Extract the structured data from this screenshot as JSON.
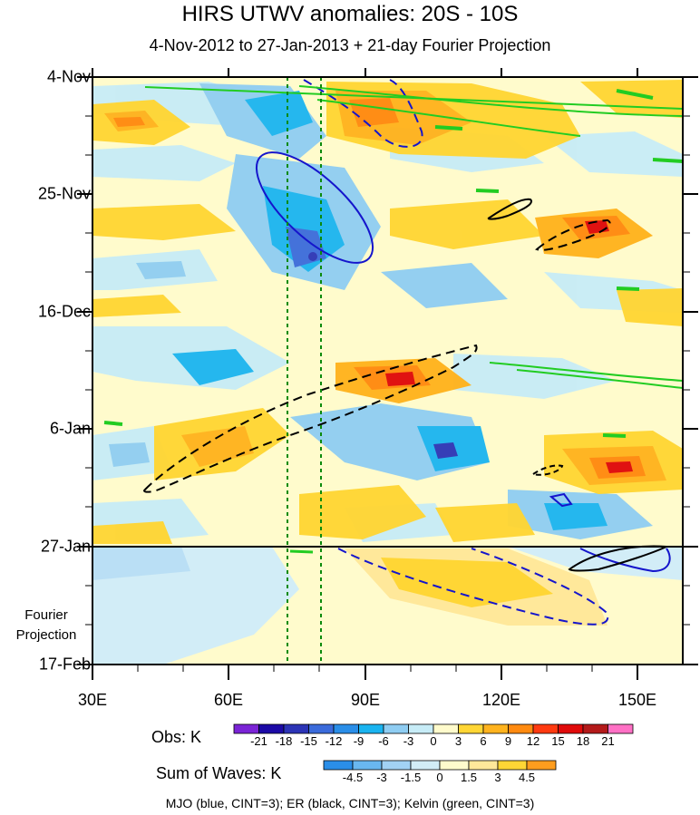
{
  "chart_data": {
    "type": "heatmap",
    "title": "HIRS UTWV anomalies: 20S - 10S",
    "subtitle": "4-Nov-2012 to 27-Jan-2013 + 21-day Fourier Projection",
    "x_axis": {
      "range": [
        30,
        160
      ],
      "ticks": [
        "30E",
        "60E",
        "90E",
        "120E",
        "150E"
      ],
      "tick_values": [
        30,
        60,
        90,
        120,
        150
      ]
    },
    "y_axis": {
      "ticks": [
        "4-Nov",
        "25-Nov",
        "16-Dec",
        "6-Jan",
        "27-Jan",
        "17-Feb"
      ],
      "direction": "time increases downward"
    },
    "projection_label": [
      "Fourier",
      "Projection"
    ],
    "reference_lines_x": [
      72.5,
      80
    ],
    "obs_colorbar": {
      "name": "Obs: K",
      "levels": [
        "-21",
        "-18",
        "-15",
        "-12",
        "-9",
        "-6",
        "-3",
        "0",
        "3",
        "6",
        "9",
        "12",
        "15",
        "18",
        "21"
      ],
      "colors": [
        "#7b24d6",
        "#1c0aa6",
        "#2c34b6",
        "#3b6bdb",
        "#2a8ee8",
        "#1ab4f0",
        "#8fcdf2",
        "#c7ecf7",
        "#fffbcc",
        "#ffd635",
        "#ffb31e",
        "#ff8a10",
        "#ff3a10",
        "#e00b0b",
        "#b41a1a",
        "#ff70c5"
      ]
    },
    "waves_colorbar": {
      "name": "Sum of Waves: K",
      "levels": [
        "-4.5",
        "-3",
        "-1.5",
        "0",
        "1.5",
        "3",
        "4.5"
      ],
      "colors": [
        "#2a8ee8",
        "#69b7f0",
        "#a2d2f4",
        "#d2edf7",
        "#fffbcc",
        "#ffe89a",
        "#ffd635",
        "#ff9d1e"
      ]
    },
    "caption": "MJO (blue, CINT=3); ER (black, CINT=3); Kelvin (green, CINT=3)",
    "series": [
      {
        "name": "MJO",
        "color": "#1515cc"
      },
      {
        "name": "ER",
        "color": "#000000"
      },
      {
        "name": "Kelvin",
        "color": "#22cc22"
      }
    ]
  }
}
